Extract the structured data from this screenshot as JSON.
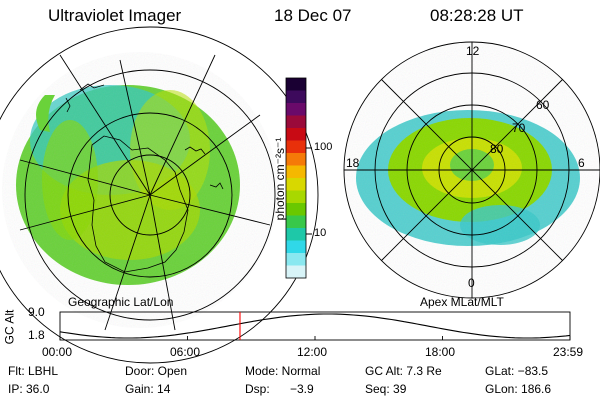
{
  "header": {
    "instrument": "Ultraviolet Imager",
    "date": "18 Dec 07",
    "time": "08:28:28 UT"
  },
  "left_panel": {
    "caption": "Geographic Lat/Lon"
  },
  "right_panel": {
    "caption": "Apex MLat/MLT",
    "mlt_labels": {
      "top": "12",
      "left": "18",
      "right": "6",
      "bottom": "0"
    },
    "lat_labels": [
      "60",
      "70",
      "80"
    ]
  },
  "colorbar": {
    "unit_label": "photon cm⁻²s⁻¹",
    "tick_labels": [
      "100",
      "10"
    ],
    "colors": [
      "#1a0033",
      "#3d0a5c",
      "#6a0a6a",
      "#9a0a3a",
      "#c80a14",
      "#e8300a",
      "#f57a08",
      "#f5b800",
      "#d8d800",
      "#a8d800",
      "#6ac800",
      "#38c84a",
      "#1ec8a8",
      "#30d8e8",
      "#8ae8f0",
      "#d8f4f8"
    ]
  },
  "altitude_plot": {
    "ylabel": "GC Alt",
    "y_ticks": [
      "9.0",
      "1.8"
    ],
    "x_ticks": [
      "00:00",
      "06:00",
      "12:00",
      "18:00",
      "23:59"
    ],
    "current_time_marker_hours": 8.47,
    "marker_color": "#ff0000"
  },
  "info": {
    "filter": "Flt: LBHL",
    "door": "Door: Open",
    "mode": "Mode: Normal",
    "gc_alt": "GC Alt: 7.3 Re",
    "glat": "GLat: −83.5",
    "ip": "IP: 36.0",
    "gain": "Gain: 14",
    "dsp_label": "Dsp:",
    "dsp_value": "−3.9",
    "seq": "Seq: 39",
    "glon": "GLon: 186.6"
  }
}
